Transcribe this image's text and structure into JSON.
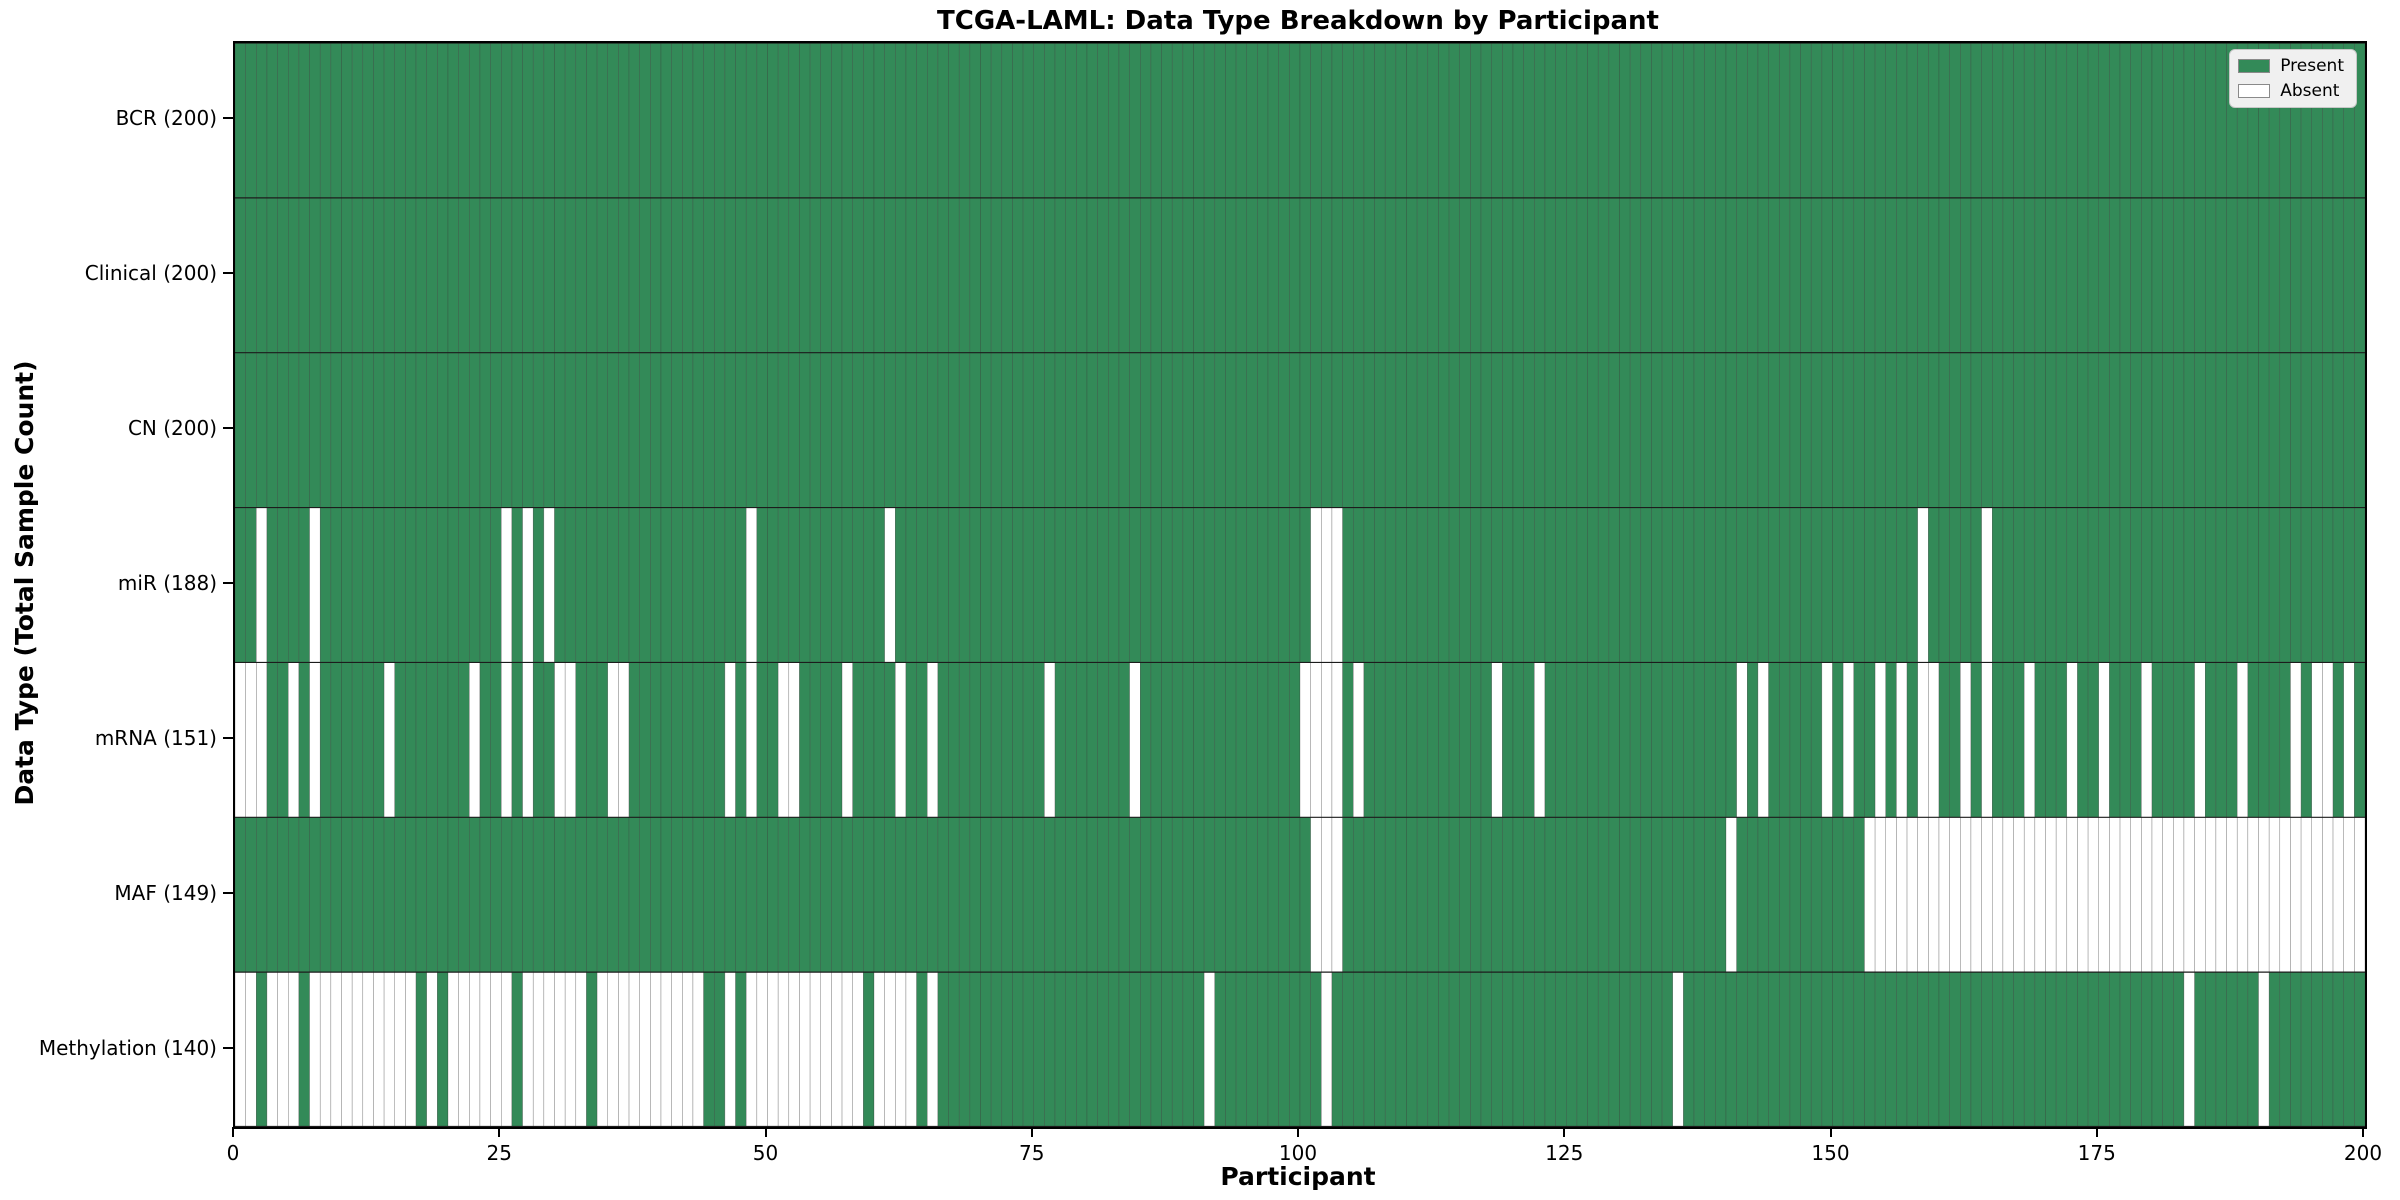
{
  "title": "TCGA-LAML: Data Type Breakdown by Participant",
  "xlabel": "Participant",
  "ylabel": "Data Type (Total Sample Count)",
  "colors": {
    "present": "#338a58",
    "absent": "#ffffff",
    "cell_edge": "#3c3c3c",
    "band_edge": "#1c1c1c",
    "legend_bg": "#f0f0f0"
  },
  "legend": {
    "present_label": "Present",
    "absent_label": "Absent"
  },
  "chart_data": {
    "type": "heatmap",
    "title": "TCGA-LAML: Data Type Breakdown by Participant",
    "xlabel": "Participant",
    "ylabel": "Data Type (Total Sample Count)",
    "legend_position": "upper right",
    "x": {
      "min": 0,
      "max": 200,
      "ticks": [
        0,
        25,
        50,
        75,
        100,
        125,
        150,
        175,
        200
      ]
    },
    "rows": [
      {
        "name": "BCR",
        "label": "BCR (200)",
        "present_count": 200,
        "absent_indices": []
      },
      {
        "name": "Clinical",
        "label": "Clinical (200)",
        "present_count": 200,
        "absent_indices": []
      },
      {
        "name": "CN",
        "label": "CN (200)",
        "present_count": 200,
        "absent_indices": []
      },
      {
        "name": "miR",
        "label": "miR (188)",
        "present_count": 188,
        "absent_indices": [
          2,
          7,
          25,
          27,
          29,
          48,
          61,
          101,
          102,
          103,
          158,
          164
        ]
      },
      {
        "name": "mRNA",
        "label": "mRNA (151)",
        "present_count": 151,
        "absent_indices": [
          0,
          1,
          2,
          5,
          7,
          14,
          22,
          25,
          27,
          30,
          31,
          35,
          36,
          46,
          48,
          51,
          52,
          57,
          62,
          65,
          76,
          84,
          100,
          101,
          102,
          103,
          105,
          118,
          122,
          141,
          143,
          149,
          151,
          154,
          156,
          158,
          159,
          162,
          164,
          168,
          172,
          175,
          179,
          184,
          188,
          193,
          195,
          196,
          198
        ]
      },
      {
        "name": "MAF",
        "label": "MAF (149)",
        "present_count": 149,
        "absent_indices": [
          101,
          102,
          103,
          140,
          153,
          154,
          155,
          156,
          157,
          158,
          159,
          160,
          161,
          162,
          163,
          164,
          165,
          166,
          167,
          168,
          169,
          170,
          171,
          172,
          173,
          174,
          175,
          176,
          177,
          178,
          179,
          180,
          181,
          182,
          183,
          184,
          185,
          186,
          187,
          188,
          189,
          190,
          191,
          192,
          193,
          194,
          195,
          196,
          197,
          198,
          199
        ]
      },
      {
        "name": "Methylation",
        "label": "Methylation (140)",
        "present_count": 140,
        "absent_indices": [
          0,
          1,
          3,
          4,
          5,
          7,
          8,
          9,
          10,
          11,
          12,
          13,
          14,
          15,
          16,
          18,
          20,
          21,
          22,
          23,
          24,
          25,
          27,
          28,
          29,
          30,
          31,
          32,
          34,
          35,
          36,
          37,
          38,
          39,
          40,
          41,
          42,
          43,
          46,
          48,
          49,
          50,
          51,
          52,
          53,
          54,
          55,
          56,
          57,
          58,
          60,
          61,
          62,
          63,
          65,
          91,
          102,
          135,
          183,
          190
        ]
      }
    ],
    "legend_entries": [
      {
        "label": "Present",
        "color": "#338a58"
      },
      {
        "label": "Absent",
        "color": "#ffffff"
      }
    ]
  }
}
